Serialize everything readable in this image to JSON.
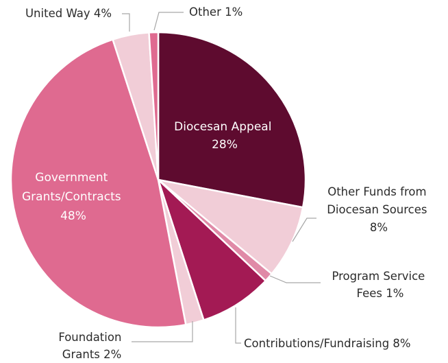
{
  "chart_data": {
    "type": "pie",
    "start_angle_deg": 0,
    "direction": "clockwise",
    "slices": [
      {
        "label_lines": [
          "Diocesan Appeal",
          "28%"
        ],
        "value": 28,
        "color": "#5e0b2f",
        "label_position": "inside"
      },
      {
        "label_lines": [
          "Other Funds from",
          "Diocesan Sources",
          "8%"
        ],
        "value": 8,
        "color": "#f1cdd7",
        "label_position": "outside"
      },
      {
        "label_lines": [
          "Program Service",
          "Fees 1%"
        ],
        "value": 1,
        "color": "#e08aa7",
        "label_position": "outside"
      },
      {
        "label_lines": [
          "Contributions/Fundraising 8%"
        ],
        "value": 8,
        "color": "#a31a54",
        "label_position": "outside"
      },
      {
        "label_lines": [
          "Foundation",
          "Grants 2%"
        ],
        "value": 2,
        "color": "#f1cdd7",
        "label_position": "outside"
      },
      {
        "label_lines": [
          "Government",
          "Grants/Contracts",
          "48%"
        ],
        "value": 48,
        "color": "#df6a90",
        "label_position": "inside"
      },
      {
        "label_lines": [
          "United Way 4%"
        ],
        "value": 4,
        "color": "#f1cdd7",
        "label_position": "outside"
      },
      {
        "label_lines": [
          "Other 1%"
        ],
        "value": 1,
        "color": "#df6a90",
        "label_position": "outside"
      }
    ]
  }
}
